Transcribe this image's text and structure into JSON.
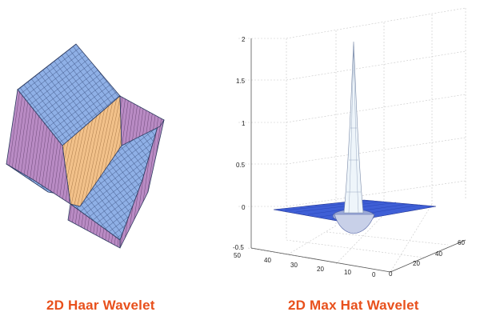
{
  "captions": {
    "haar": "2D Haar Wavelet",
    "maxhat": "2D Max Hat Wavelet"
  },
  "colors": {
    "caption": "#e8501c",
    "haar_top": "#8fb0e6",
    "haar_front": "#f2c18a",
    "haar_side": "#b98bc4",
    "surface_flat": "#3f5fd6",
    "peak": "#e8f2f8"
  },
  "chart_data": {
    "type": "surface",
    "z_ticks": [
      "2",
      "1.5",
      "1",
      "0.5",
      "0",
      "-0.5"
    ],
    "x_ticks": [
      "50",
      "40",
      "30",
      "20",
      "10",
      "0"
    ],
    "y_ticks": [
      "0",
      "20",
      "40",
      "60"
    ],
    "zlim": [
      -0.5,
      2
    ],
    "grid": true
  }
}
